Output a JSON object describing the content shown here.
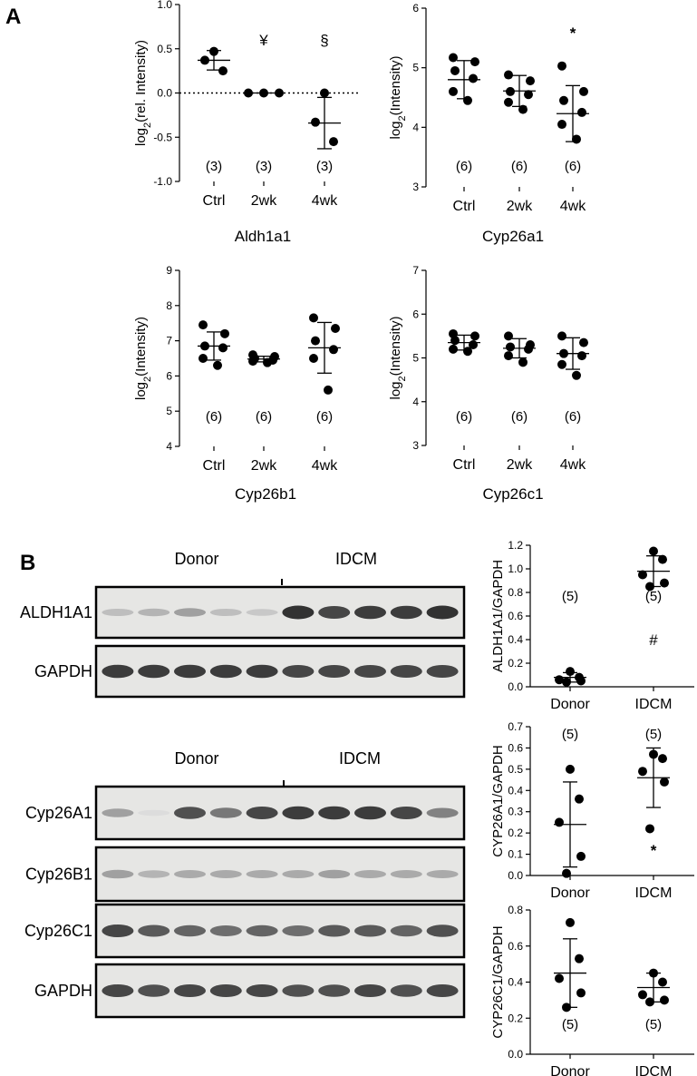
{
  "panel_letters": {
    "a": "A",
    "b": "B"
  },
  "chart_data": [
    {
      "type": "scatter",
      "title": "Aldh1a1",
      "ylabel": "log2(rel. Intensity)",
      "categories": [
        "Ctrl",
        "2wk",
        "4wk"
      ],
      "ylim": [
        -1.0,
        1.0
      ],
      "yticks": [
        "1.0",
        "0.5",
        "0.0",
        "-0.5",
        "-1.0"
      ],
      "reference_line": 0.0,
      "points": [
        [
          0.47,
          0.37,
          0.25
        ],
        [
          0.0,
          0.0,
          0.0
        ],
        [
          0.0,
          -0.33,
          -0.55
        ]
      ],
      "mean": [
        0.37,
        0.0,
        -0.34
      ],
      "sd": [
        0.11,
        0.0,
        0.29
      ],
      "n_labels": [
        "(3)",
        "(3)",
        "(3)"
      ],
      "annotations": [
        "",
        "¥",
        "§"
      ]
    },
    {
      "type": "scatter",
      "title": "Cyp26a1",
      "ylabel": "log2(Intensity)",
      "categories": [
        "Ctrl",
        "2wk",
        "4wk"
      ],
      "ylim": [
        3,
        6
      ],
      "yticks": [
        "6",
        "5",
        "4",
        "3"
      ],
      "points": [
        [
          5.17,
          5.1,
          4.95,
          4.82,
          4.6,
          4.45
        ],
        [
          4.88,
          4.78,
          4.6,
          4.55,
          4.42,
          4.3
        ],
        [
          5.03,
          4.6,
          4.45,
          4.25,
          4.05,
          3.8
        ]
      ],
      "mean": [
        4.8,
        4.61,
        4.23
      ],
      "sd": [
        0.32,
        0.26,
        0.47
      ],
      "n_labels": [
        "(6)",
        "(6)",
        "(6)"
      ],
      "annotations": [
        "",
        "",
        "*"
      ]
    },
    {
      "type": "scatter",
      "title": "Cyp26b1",
      "ylabel": "log2(Intensity)",
      "categories": [
        "Ctrl",
        "2wk",
        "4wk"
      ],
      "ylim": [
        4,
        9
      ],
      "yticks": [
        "9",
        "8",
        "7",
        "6",
        "5",
        "4"
      ],
      "points": [
        [
          7.45,
          7.2,
          6.85,
          6.8,
          6.5,
          6.3
        ],
        [
          6.6,
          6.55,
          6.5,
          6.45,
          6.42,
          6.38
        ],
        [
          7.65,
          7.35,
          7.0,
          6.75,
          6.5,
          5.6
        ]
      ],
      "mean": [
        6.85,
        6.48,
        6.8
      ],
      "sd": [
        0.4,
        0.08,
        0.72
      ],
      "n_labels": [
        "(6)",
        "(6)",
        "(6)"
      ],
      "annotations": [
        "",
        "",
        ""
      ]
    },
    {
      "type": "scatter",
      "title": "Cyp26c1",
      "ylabel": "log2(Intensity)",
      "categories": [
        "Ctrl",
        "2wk",
        "4wk"
      ],
      "ylim": [
        3,
        7
      ],
      "yticks": [
        "7",
        "6",
        "5",
        "4",
        "3"
      ],
      "points": [
        [
          5.55,
          5.5,
          5.4,
          5.3,
          5.2,
          5.15
        ],
        [
          5.5,
          5.3,
          5.25,
          5.2,
          5.05,
          4.9
        ],
        [
          5.5,
          5.35,
          5.1,
          5.05,
          4.85,
          4.6
        ]
      ],
      "mean": [
        5.35,
        5.22,
        5.1
      ],
      "sd": [
        0.17,
        0.22,
        0.36
      ],
      "n_labels": [
        "(6)",
        "(6)",
        "(6)"
      ],
      "annotations": [
        "",
        "",
        ""
      ]
    },
    {
      "type": "scatter",
      "title": "",
      "ylabel": "ALDH1A1/GAPDH",
      "categories": [
        "Donor",
        "IDCM"
      ],
      "ylim": [
        0,
        1.2
      ],
      "yticks": [
        "1.2",
        "1.0",
        "0.8",
        "0.6",
        "0.4",
        "0.2",
        "0.0"
      ],
      "points": [
        [
          0.13,
          0.08,
          0.06,
          0.05,
          0.04
        ],
        [
          1.15,
          1.08,
          0.95,
          0.88,
          0.85
        ]
      ],
      "mean": [
        0.08,
        0.98
      ],
      "sd": [
        0.04,
        0.13
      ],
      "n_labels": [
        "(5)",
        "(5)"
      ],
      "annotations": [
        "",
        "#"
      ]
    },
    {
      "type": "scatter",
      "title": "",
      "ylabel": "CYP26A1/GAPDH",
      "categories": [
        "Donor",
        "IDCM"
      ],
      "ylim": [
        0,
        0.7
      ],
      "yticks": [
        "0.7",
        "0.6",
        "0.5",
        "0.4",
        "0.3",
        "0.2",
        "0.1",
        "0.0"
      ],
      "points": [
        [
          0.5,
          0.36,
          0.25,
          0.09,
          0.01
        ],
        [
          0.57,
          0.55,
          0.49,
          0.44,
          0.22
        ]
      ],
      "mean": [
        0.24,
        0.46
      ],
      "sd": [
        0.2,
        0.14
      ],
      "n_labels": [
        "(5)",
        "(5)"
      ],
      "annotations": [
        "",
        "*"
      ]
    },
    {
      "type": "scatter",
      "title": "",
      "ylabel": "CYP26C1/GAPDH",
      "categories": [
        "Donor",
        "IDCM"
      ],
      "ylim": [
        0,
        0.8
      ],
      "yticks": [
        "0.8",
        "0.6",
        "0.4",
        "0.2",
        "0.0"
      ],
      "points": [
        [
          0.73,
          0.53,
          0.42,
          0.34,
          0.26
        ],
        [
          0.45,
          0.4,
          0.33,
          0.3,
          0.29
        ]
      ],
      "mean": [
        0.45,
        0.37
      ],
      "sd": [
        0.19,
        0.08
      ],
      "n_labels": [
        "(5)",
        "(5)"
      ],
      "annotations": [
        "",
        ""
      ]
    }
  ],
  "blots": [
    {
      "group_labels": [
        "Donor",
        "IDCM"
      ],
      "rows": [
        {
          "label": "ALDH1A1",
          "intensities": [
            0.2,
            0.25,
            0.35,
            0.2,
            0.15,
            0.9,
            0.8,
            0.85,
            0.85,
            0.9
          ]
        },
        {
          "label": "GAPDH",
          "intensities": [
            0.85,
            0.85,
            0.85,
            0.85,
            0.85,
            0.8,
            0.8,
            0.8,
            0.8,
            0.8
          ]
        }
      ]
    },
    {
      "group_labels": [
        "Donor",
        "IDCM"
      ],
      "rows": [
        {
          "label": "Cyp26A1",
          "intensities": [
            0.35,
            0.05,
            0.75,
            0.55,
            0.8,
            0.85,
            0.85,
            0.85,
            0.8,
            0.5
          ]
        },
        {
          "label": "Cyp26B1",
          "intensities": [
            0.35,
            0.25,
            0.3,
            0.3,
            0.3,
            0.3,
            0.35,
            0.3,
            0.3,
            0.3
          ]
        },
        {
          "label": "Cyp26C1",
          "intensities": [
            0.8,
            0.7,
            0.65,
            0.6,
            0.65,
            0.6,
            0.7,
            0.7,
            0.65,
            0.75
          ]
        },
        {
          "label": "GAPDH",
          "intensities": [
            0.8,
            0.75,
            0.8,
            0.8,
            0.8,
            0.75,
            0.75,
            0.8,
            0.75,
            0.8
          ]
        }
      ]
    }
  ]
}
